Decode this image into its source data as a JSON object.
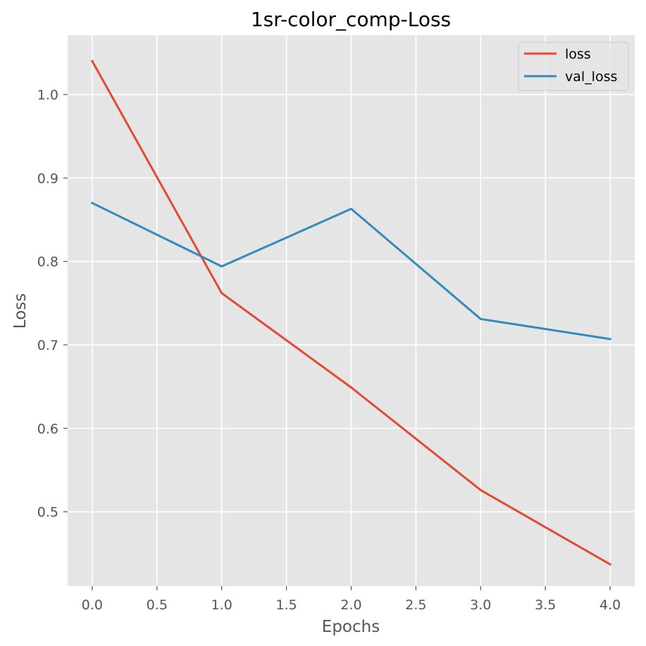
{
  "chart_data": {
    "type": "line",
    "title": "1sr-color_comp-Loss",
    "xlabel": "Epochs",
    "ylabel": "Loss",
    "x": [
      0,
      1,
      2,
      3,
      4
    ],
    "xlim": [
      -0.19,
      4.19
    ],
    "ylim": [
      0.411,
      1.071
    ],
    "xticks": [
      0.0,
      0.5,
      1.0,
      1.5,
      2.0,
      2.5,
      3.0,
      3.5,
      4.0
    ],
    "xtick_labels": [
      "0.0",
      "0.5",
      "1.0",
      "1.5",
      "2.0",
      "2.5",
      "3.0",
      "3.5",
      "4.0"
    ],
    "yticks": [
      0.5,
      0.6,
      0.7,
      0.8,
      0.9,
      1.0
    ],
    "ytick_labels": [
      "0.5",
      "0.6",
      "0.7",
      "0.8",
      "0.9",
      "1.0"
    ],
    "grid": true,
    "legend_position": "top-right",
    "series": [
      {
        "name": "loss",
        "color": "#e24a33",
        "values": [
          1.04,
          0.762,
          0.649,
          0.526,
          0.437
        ]
      },
      {
        "name": "val_loss",
        "color": "#348abd",
        "values": [
          0.87,
          0.794,
          0.863,
          0.731,
          0.707
        ]
      }
    ],
    "colors": {
      "plot_background": "#e5e5e5",
      "grid": "#ffffff"
    }
  }
}
